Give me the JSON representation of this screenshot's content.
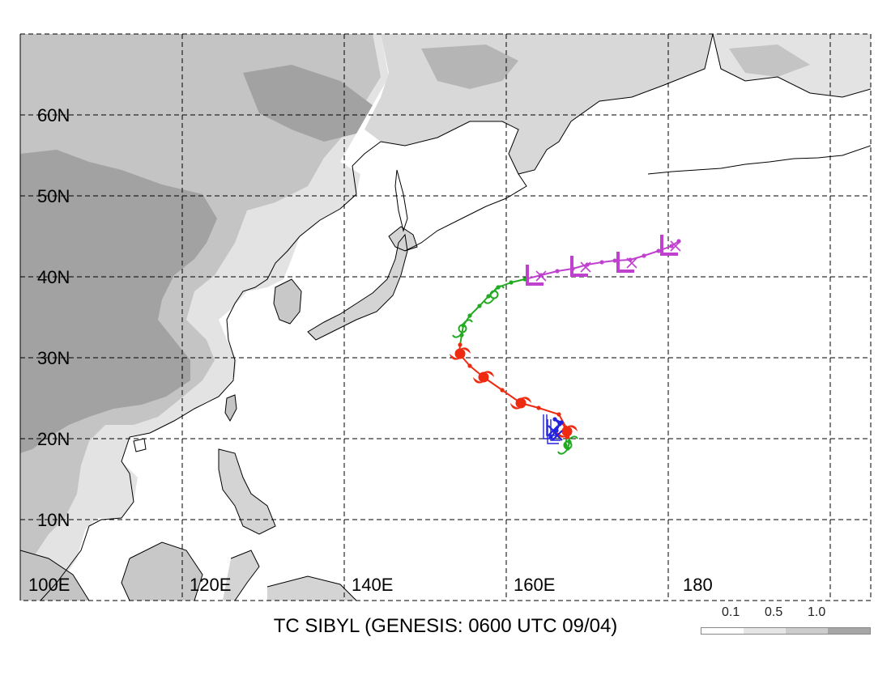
{
  "map": {
    "caption": "TC SIBYL (GENESIS: 0600 UTC 09/04)",
    "lat_labels": [
      "60N",
      "50N",
      "40N",
      "30N",
      "20N",
      "10N"
    ],
    "lon_labels": [
      "100E",
      "120E",
      "140E",
      "160E",
      "180"
    ],
    "extent": {
      "lon": [
        100,
        205
      ],
      "lat": [
        0,
        70
      ]
    }
  },
  "legend": {
    "labels": [
      "0.1",
      "0.5",
      "1.0"
    ],
    "colors": [
      "#ffffff",
      "#e6e6e6",
      "#cccccc",
      "#a6a6a6"
    ]
  },
  "colors": {
    "land_light": "#e3e3e3",
    "land_mid": "#c4c4c4",
    "land_dark": "#a2a2a2",
    "coast": "#000000",
    "track_blue": "#2222dd",
    "track_red": "#ee2a10",
    "track_green": "#22aa22",
    "track_magenta": "#c040d0"
  },
  "track": [
    {
      "stage": "blue",
      "lon": 165.5,
      "lat": 20.2
    },
    {
      "stage": "blue",
      "lon": 166.2,
      "lat": 21.0
    },
    {
      "stage": "blue",
      "lon": 166.6,
      "lat": 21.8
    },
    {
      "stage": "blue",
      "lon": 166.0,
      "lat": 22.4
    },
    {
      "stage": "blue",
      "lon": 166.8,
      "lat": 22.0
    },
    {
      "stage": "red",
      "lon": 167.3,
      "lat": 21.4
    },
    {
      "stage": "red",
      "lon": 167.6,
      "lat": 20.8
    },
    {
      "stage": "red",
      "lon": 167.5,
      "lat": 20.2
    },
    {
      "stage": "green",
      "lon": 167.3,
      "lat": 19.2
    },
    {
      "stage": "green",
      "lon": 167.6,
      "lat": 18.8
    },
    {
      "stage": "green",
      "lon": 167.8,
      "lat": 19.6
    },
    {
      "stage": "red",
      "lon": 167.6,
      "lat": 21.0
    },
    {
      "stage": "red",
      "lon": 166.5,
      "lat": 23.0
    },
    {
      "stage": "red",
      "lon": 164.0,
      "lat": 23.8
    },
    {
      "stage": "red",
      "lon": 161.8,
      "lat": 24.4
    },
    {
      "stage": "red",
      "lon": 159.5,
      "lat": 26.0
    },
    {
      "stage": "red",
      "lon": 157.2,
      "lat": 27.6
    },
    {
      "stage": "red",
      "lon": 155.5,
      "lat": 29.0
    },
    {
      "stage": "red",
      "lon": 154.2,
      "lat": 30.5
    },
    {
      "stage": "red",
      "lon": 154.3,
      "lat": 31.6
    },
    {
      "stage": "green",
      "lon": 154.5,
      "lat": 32.8
    },
    {
      "stage": "green",
      "lon": 154.7,
      "lat": 34.0
    },
    {
      "stage": "green",
      "lon": 155.5,
      "lat": 35.2
    },
    {
      "stage": "green",
      "lon": 156.7,
      "lat": 36.4
    },
    {
      "stage": "green",
      "lon": 157.8,
      "lat": 37.6
    },
    {
      "stage": "green",
      "lon": 159.0,
      "lat": 38.7
    },
    {
      "stage": "green",
      "lon": 160.6,
      "lat": 39.3
    },
    {
      "stage": "green",
      "lon": 162.3,
      "lat": 39.7
    },
    {
      "stage": "magenta",
      "lon": 164.3,
      "lat": 40.2
    },
    {
      "stage": "magenta",
      "lon": 166.3,
      "lat": 40.7
    },
    {
      "stage": "magenta",
      "lon": 168.2,
      "lat": 41.0
    },
    {
      "stage": "magenta",
      "lon": 170.0,
      "lat": 41.5
    },
    {
      "stage": "magenta",
      "lon": 171.8,
      "lat": 41.8
    },
    {
      "stage": "magenta",
      "lon": 173.4,
      "lat": 42.0
    },
    {
      "stage": "magenta",
      "lon": 175.3,
      "lat": 42.1
    },
    {
      "stage": "magenta",
      "lon": 177.0,
      "lat": 42.6
    },
    {
      "stage": "magenta",
      "lon": 178.8,
      "lat": 43.2
    },
    {
      "stage": "magenta",
      "lon": 180.4,
      "lat": 43.8
    },
    {
      "stage": "magenta",
      "lon": 181.3,
      "lat": 44.4
    }
  ],
  "markers": [
    {
      "type": "cyclone",
      "stage": "red",
      "lon": 154.3,
      "lat": 30.5
    },
    {
      "type": "cyclone",
      "stage": "red",
      "lon": 157.2,
      "lat": 27.6
    },
    {
      "type": "cyclone",
      "stage": "red",
      "lon": 161.8,
      "lat": 24.4
    },
    {
      "type": "cyclone",
      "stage": "red",
      "lon": 167.5,
      "lat": 20.9
    },
    {
      "type": "storm",
      "stage": "green",
      "lon": 167.6,
      "lat": 19.2
    },
    {
      "type": "storm",
      "stage": "green",
      "lon": 154.6,
      "lat": 33.6
    },
    {
      "type": "storm",
      "stage": "green",
      "lon": 158.5,
      "lat": 37.8
    },
    {
      "type": "low",
      "stage": "magenta",
      "lon": 163.5,
      "lat": 40.1
    },
    {
      "type": "low",
      "stage": "magenta",
      "lon": 169.0,
      "lat": 41.2
    },
    {
      "type": "low",
      "stage": "magenta",
      "lon": 174.7,
      "lat": 41.7
    },
    {
      "type": "low",
      "stage": "magenta",
      "lon": 180.1,
      "lat": 43.8
    },
    {
      "type": "depression",
      "stage": "blue",
      "lon": 165.8,
      "lat": 21.0
    },
    {
      "type": "depression",
      "stage": "blue",
      "lon": 166.3,
      "lat": 20.4
    }
  ]
}
